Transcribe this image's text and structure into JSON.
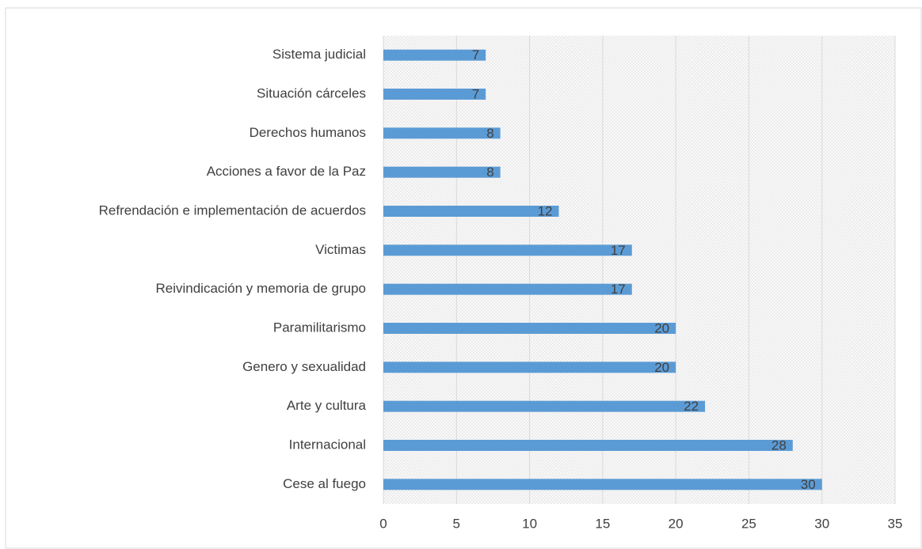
{
  "chart_data": {
    "type": "bar",
    "orientation": "horizontal",
    "categories": [
      "Sistema judicial",
      "Situación cárceles",
      "Derechos humanos",
      "Acciones a favor de la Paz",
      "Refrendación e implementación de acuerdos",
      "Victimas",
      "Reivindicación y memoria de grupo",
      "Paramilitarismo",
      "Genero y sexualidad",
      "Arte y cultura",
      "Internacional",
      "Cese al fuego"
    ],
    "values": [
      7,
      7,
      8,
      8,
      12,
      17,
      17,
      20,
      20,
      22,
      28,
      30
    ],
    "color": "#5b9bd5",
    "xlim": [
      0,
      35
    ],
    "xticks": [
      0,
      5,
      10,
      15,
      20,
      25,
      30,
      35
    ],
    "grid": true
  }
}
